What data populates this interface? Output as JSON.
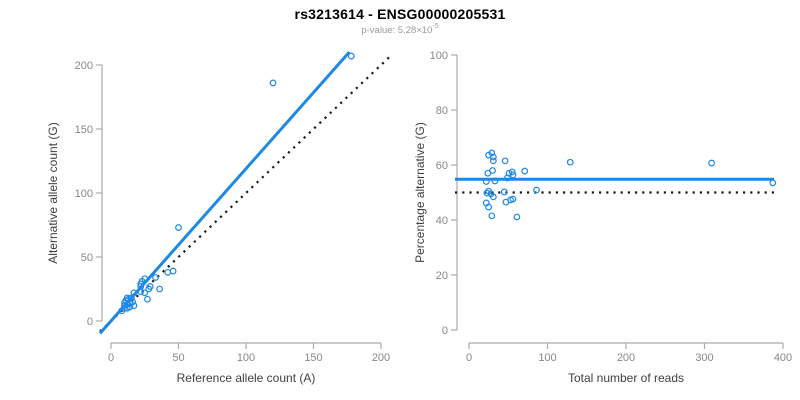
{
  "header": {
    "title": "rs3213614 - ENSG00000205531",
    "pvalue_label": "p-value: 5.28×10",
    "pvalue_exponent": "-5"
  },
  "colors": {
    "accent": "#1E88E5",
    "dotted_line": "#1a1a1a",
    "axis": "#ababab",
    "tick_label": "#878787",
    "axis_title": "#3f3f3f",
    "title": "#000000",
    "subtitle": "#9a9a9a",
    "background": "#ffffff"
  },
  "chart_data": [
    {
      "type": "scatter",
      "xlabel": "Reference allele count (A)",
      "ylabel": "Alternative allele count (G)",
      "xlim": [
        0,
        200
      ],
      "ylim": [
        0,
        200
      ],
      "xticks": [
        0,
        50,
        100,
        150,
        200
      ],
      "yticks": [
        0,
        50,
        100,
        150,
        200
      ],
      "grid": false,
      "marker": "open-circle",
      "points": [
        [
          8,
          8
        ],
        [
          10,
          10
        ],
        [
          10,
          12
        ],
        [
          10,
          14
        ],
        [
          11,
          16
        ],
        [
          12,
          10
        ],
        [
          12,
          13
        ],
        [
          12,
          18
        ],
        [
          13,
          17
        ],
        [
          14,
          11
        ],
        [
          14,
          14
        ],
        [
          15,
          18
        ],
        [
          16,
          15
        ],
        [
          17,
          12
        ],
        [
          17,
          22
        ],
        [
          22,
          23
        ],
        [
          22,
          27
        ],
        [
          22,
          29
        ],
        [
          23,
          31
        ],
        [
          25,
          22
        ],
        [
          25,
          33
        ],
        [
          27,
          17
        ],
        [
          28,
          25
        ],
        [
          29,
          27
        ],
        [
          33,
          34
        ],
        [
          36,
          25
        ],
        [
          42,
          38
        ],
        [
          46,
          39
        ],
        [
          50,
          73
        ],
        [
          120,
          186
        ],
        [
          178,
          207
        ]
      ],
      "regression_line": {
        "slope": 1.19,
        "intercept": 0,
        "style": "solid"
      },
      "identity_line": {
        "slope": 1,
        "intercept": 0,
        "style": "dotted"
      }
    },
    {
      "type": "scatter",
      "xlabel": "Total number of reads",
      "ylabel": "Percentage alternative (G)",
      "xlim": [
        0,
        400
      ],
      "ylim": [
        0,
        100
      ],
      "xticks": [
        0,
        100,
        200,
        300,
        400
      ],
      "yticks": [
        0,
        20,
        40,
        60,
        80,
        100
      ],
      "grid": false,
      "marker": "open-circle",
      "points": [
        [
          25,
          63.6
        ],
        [
          29,
          64.4
        ],
        [
          31,
          62.9
        ],
        [
          31,
          61.5
        ],
        [
          46,
          61.5
        ],
        [
          129,
          61
        ],
        [
          24,
          57
        ],
        [
          30,
          58
        ],
        [
          51,
          57
        ],
        [
          55,
          57.5
        ],
        [
          56,
          56.4
        ],
        [
          71,
          57.8
        ],
        [
          22,
          54
        ],
        [
          33,
          54.2
        ],
        [
          49,
          55.3
        ],
        [
          25,
          50.5
        ],
        [
          23,
          49.8
        ],
        [
          28,
          49.5
        ],
        [
          31,
          48.4
        ],
        [
          45,
          50.2
        ],
        [
          86,
          50.9
        ],
        [
          22,
          46.2
        ],
        [
          47,
          46.5
        ],
        [
          53,
          47.3
        ],
        [
          56,
          47.6
        ],
        [
          25,
          44.7
        ],
        [
          29,
          41.5
        ],
        [
          61,
          41.1
        ],
        [
          309,
          60.7
        ],
        [
          387,
          53.5
        ]
      ],
      "mean_line": {
        "y": 54.8,
        "style": "solid"
      },
      "reference_line": {
        "y": 50,
        "style": "dotted"
      }
    }
  ]
}
